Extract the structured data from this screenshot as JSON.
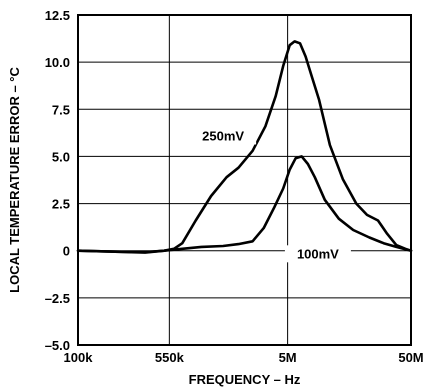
{
  "chart_data": {
    "type": "line",
    "title": "",
    "xlabel": "FREQUENCY – Hz",
    "ylabel": "LOCAL TEMPERATURE ERROR – °C",
    "xscale": "log",
    "xlim": [
      100000,
      50000000
    ],
    "ylim": [
      -5.0,
      12.5
    ],
    "grid": true,
    "x_ticks": [
      {
        "value": 100000,
        "label": "100k"
      },
      {
        "value": 550000,
        "label": "550k"
      },
      {
        "value": 5000000,
        "label": "5M"
      },
      {
        "value": 50000000,
        "label": "50M"
      }
    ],
    "y_ticks": [
      {
        "value": 12.5,
        "label": "12.5"
      },
      {
        "value": 10.0,
        "label": "10.0"
      },
      {
        "value": 7.5,
        "label": "7.5"
      },
      {
        "value": 5.0,
        "label": "5.0"
      },
      {
        "value": 2.5,
        "label": "2.5"
      },
      {
        "value": 0,
        "label": "0"
      },
      {
        "value": -2.5,
        "label": "–2.5"
      },
      {
        "value": -5.0,
        "label": "–5.0"
      }
    ],
    "series": [
      {
        "name": "250mV",
        "label_x": 1500000,
        "label_y": 5.9,
        "points": [
          [
            100000,
            0
          ],
          [
            200000,
            -0.05
          ],
          [
            350000,
            -0.1
          ],
          [
            500000,
            0
          ],
          [
            600000,
            0.1
          ],
          [
            700000,
            0.4
          ],
          [
            900000,
            1.6
          ],
          [
            1200000,
            2.9
          ],
          [
            1600000,
            3.9
          ],
          [
            2000000,
            4.4
          ],
          [
            2600000,
            5.3
          ],
          [
            3300000,
            6.6
          ],
          [
            4000000,
            8.2
          ],
          [
            4600000,
            9.8
          ],
          [
            5200000,
            10.9
          ],
          [
            5700000,
            11.1
          ],
          [
            6300000,
            11.0
          ],
          [
            7000000,
            10.3
          ],
          [
            7800000,
            9.3
          ],
          [
            9000000,
            8.0
          ],
          [
            11000000,
            5.6
          ],
          [
            14000000,
            3.8
          ],
          [
            18000000,
            2.5
          ],
          [
            22000000,
            1.9
          ],
          [
            27000000,
            1.6
          ],
          [
            32000000,
            0.9
          ],
          [
            38000000,
            0.3
          ],
          [
            45000000,
            0.1
          ],
          [
            50000000,
            0
          ]
        ]
      },
      {
        "name": "100mV",
        "label_x": 8800000,
        "label_y": -0.35,
        "points": [
          [
            100000,
            0
          ],
          [
            200000,
            -0.05
          ],
          [
            350000,
            -0.08
          ],
          [
            500000,
            0
          ],
          [
            700000,
            0.1
          ],
          [
            1000000,
            0.2
          ],
          [
            1500000,
            0.25
          ],
          [
            2000000,
            0.35
          ],
          [
            2600000,
            0.5
          ],
          [
            3200000,
            1.2
          ],
          [
            3900000,
            2.3
          ],
          [
            4600000,
            3.3
          ],
          [
            5200000,
            4.3
          ],
          [
            5800000,
            4.9
          ],
          [
            6500000,
            5.0
          ],
          [
            7300000,
            4.6
          ],
          [
            8300000,
            3.9
          ],
          [
            10000000,
            2.7
          ],
          [
            13000000,
            1.7
          ],
          [
            17000000,
            1.1
          ],
          [
            23000000,
            0.7
          ],
          [
            30000000,
            0.4
          ],
          [
            38000000,
            0.2
          ],
          [
            50000000,
            0
          ]
        ]
      }
    ]
  }
}
